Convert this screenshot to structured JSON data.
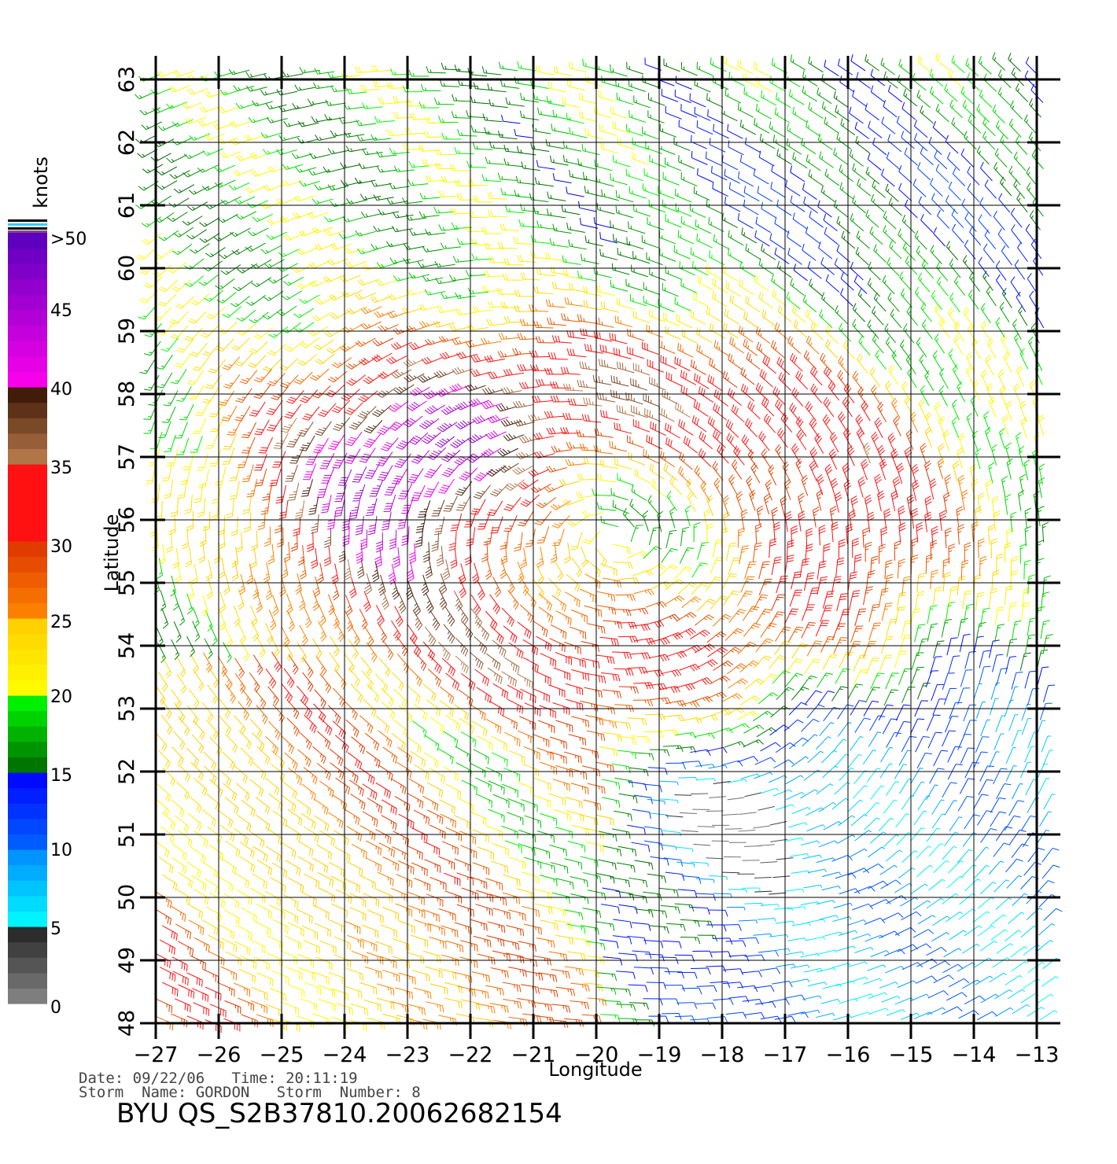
{
  "chart_data": {
    "type": "wind-barb",
    "xlabel": "Longitude",
    "ylabel": "Latitude",
    "xlim": [
      -27,
      -13
    ],
    "ylim": [
      48,
      63
    ],
    "x_ticks": [
      "−27",
      "−26",
      "−25",
      "−24",
      "−23",
      "−22",
      "−21",
      "−20",
      "−19",
      "−18",
      "−17",
      "−16",
      "−15",
      "−14",
      "−13"
    ],
    "y_ticks": [
      "48",
      "49",
      "50",
      "51",
      "52",
      "53",
      "54",
      "55",
      "56",
      "57",
      "58",
      "59",
      "60",
      "61",
      "62",
      "63"
    ],
    "grid": true,
    "colorbar": {
      "unit": "knots",
      "labels": [
        ">50",
        "45",
        "40",
        "35",
        "30",
        "25",
        "20",
        "15",
        "10",
        "5",
        "0"
      ],
      "bands": [
        {
          "range": [
            0,
            5
          ],
          "colors": [
            "#888888",
            "#222222"
          ]
        },
        {
          "range": [
            5,
            10
          ],
          "colors": [
            "#00ffff",
            "#0088ff"
          ]
        },
        {
          "range": [
            10,
            15
          ],
          "colors": [
            "#0066ff",
            "#0000ff"
          ]
        },
        {
          "range": [
            15,
            20
          ],
          "colors": [
            "#006600",
            "#00ff00"
          ]
        },
        {
          "range": [
            20,
            25
          ],
          "colors": [
            "#ffff00",
            "#ffcc00"
          ]
        },
        {
          "range": [
            25,
            30
          ],
          "colors": [
            "#ff8800",
            "#dd3300"
          ]
        },
        {
          "range": [
            30,
            35
          ],
          "colors": [
            "#ff1111",
            "#ff1111"
          ]
        },
        {
          "range": [
            35,
            40
          ],
          "colors": [
            "#c08050",
            "#331100"
          ]
        },
        {
          "range": [
            40,
            50
          ],
          "colors": [
            "#ff00ee",
            "#5500bb"
          ]
        }
      ]
    },
    "field": {
      "centers": [
        {
          "name": "cyclone",
          "lon": -19.5,
          "lat": 55.8,
          "spin": 1
        },
        {
          "name": "low",
          "lon": -15.8,
          "lat": 50.5,
          "spin": 1
        },
        {
          "name": "calm",
          "lon": -18.2,
          "lat": 51.2,
          "spin": 0
        }
      ],
      "spacing_deg_lon": 0.25,
      "spacing_deg_lat": 0.25
    }
  },
  "info": {
    "line1": "Date: 09/22/06   Time: 20:11:19",
    "line2": "Storm  Name: GORDON   Storm  Number: 8"
  },
  "title": "BYU  QS_S2B37810.20062682154"
}
